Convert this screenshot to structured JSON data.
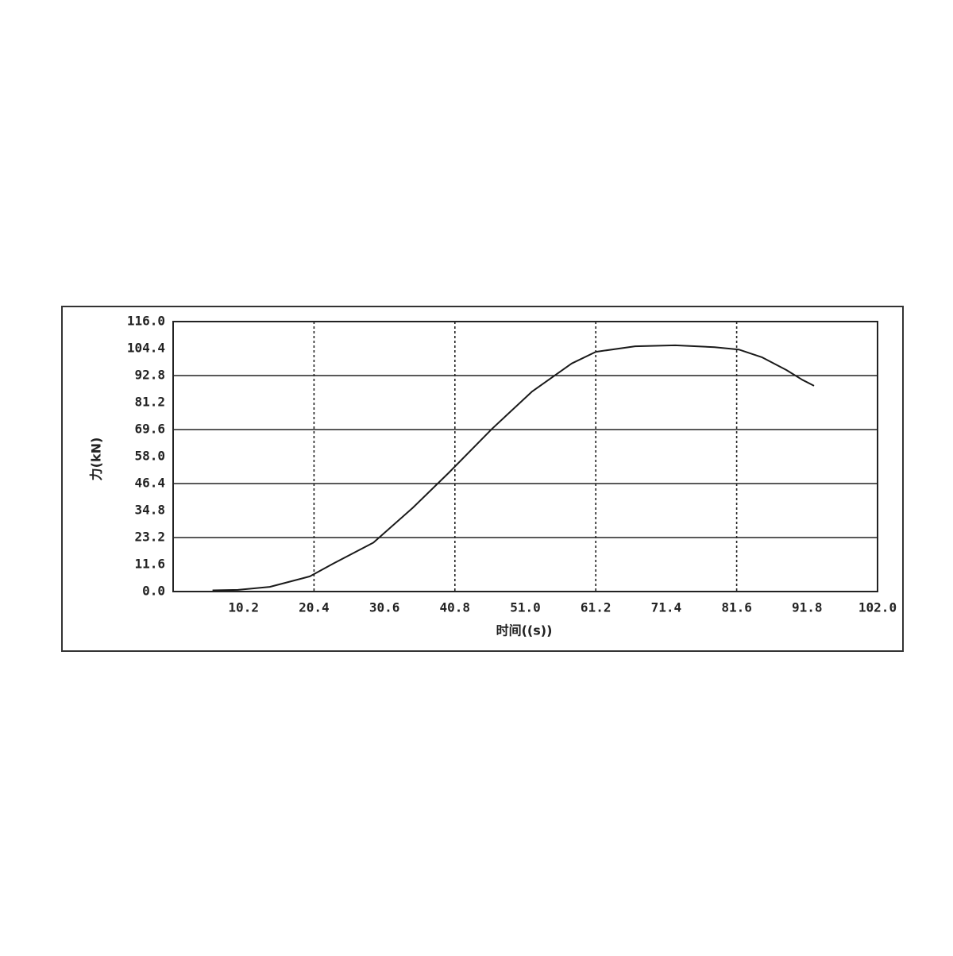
{
  "chart_data": {
    "type": "line",
    "x_label": "时间((s))",
    "y_label": "力(kN)",
    "x": [
      5.7,
      9.4,
      14.0,
      19.8,
      23.2,
      29.0,
      34.7,
      39.9,
      46.2,
      52.0,
      57.7,
      61.2,
      66.9,
      72.7,
      78.4,
      81.9,
      85.3,
      88.8,
      91.1,
      92.8
    ],
    "values": [
      0.5,
      0.7,
      2.0,
      6.5,
      12.0,
      21.0,
      36.0,
      51.0,
      70.0,
      86.0,
      98.0,
      103.0,
      105.4,
      105.8,
      105.0,
      104.0,
      100.6,
      95.2,
      91.0,
      88.4
    ],
    "color": "#1a1a1a",
    "xlim": [
      0,
      102
    ],
    "ylim": [
      0,
      116
    ],
    "xticks": [
      10.2,
      20.4,
      30.6,
      40.8,
      {
        "value": 51,
        "label": "51.0"
      },
      61.2,
      71.4,
      81.6,
      91.8,
      {
        "value": 102,
        "label": "102.0"
      }
    ],
    "yticks": [
      {
        "value": 0,
        "label": "0.0"
      },
      11.6,
      23.2,
      34.8,
      46.4,
      {
        "value": 58,
        "label": "58.0"
      },
      69.6,
      81.2,
      92.8,
      104.4,
      {
        "value": 116,
        "label": "116.0"
      }
    ],
    "grid": true
  }
}
